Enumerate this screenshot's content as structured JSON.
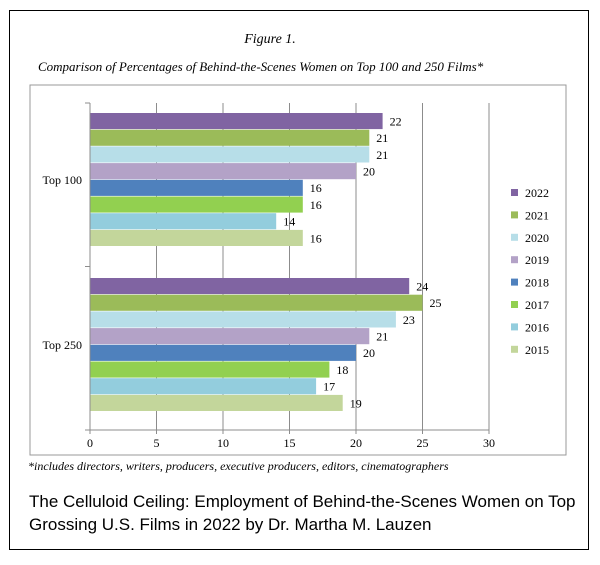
{
  "figure_number": "Figure 1.",
  "figure_title": "Comparison of Percentages of Behind-the-Scenes Women on Top 100 and 250 Films*",
  "footnote": "*includes directors, writers, producers, executive producers, editors, cinematographers",
  "caption": "The Celluloid Ceiling: Employment of Behind-the-Scenes Women on Top Grossing U.S. Films in  2022 by Dr. Martha M. Lauzen",
  "chart_data": {
    "type": "bar",
    "orientation": "horizontal",
    "categories": [
      "Top 100",
      "Top 250"
    ],
    "series": [
      {
        "name": "2022",
        "color": "#8064a2",
        "values": [
          22,
          24
        ]
      },
      {
        "name": "2021",
        "color": "#9bbb59",
        "values": [
          21,
          25
        ]
      },
      {
        "name": "2020",
        "color": "#b7dee8",
        "values": [
          21,
          23
        ]
      },
      {
        "name": "2019",
        "color": "#b3a2c7",
        "values": [
          20,
          21
        ]
      },
      {
        "name": "2018",
        "color": "#4f81bd",
        "values": [
          16,
          20
        ]
      },
      {
        "name": "2017",
        "color": "#92d050",
        "values": [
          16,
          18
        ]
      },
      {
        "name": "2016",
        "color": "#93cddd",
        "values": [
          14,
          17
        ]
      },
      {
        "name": "2015",
        "color": "#c3d69b",
        "values": [
          16,
          19
        ]
      }
    ],
    "xlim": [
      0,
      30
    ],
    "xticks": [
      0,
      5,
      10,
      15,
      20,
      25,
      30
    ],
    "grid": true,
    "legend_position": "right",
    "data_labels": true
  }
}
